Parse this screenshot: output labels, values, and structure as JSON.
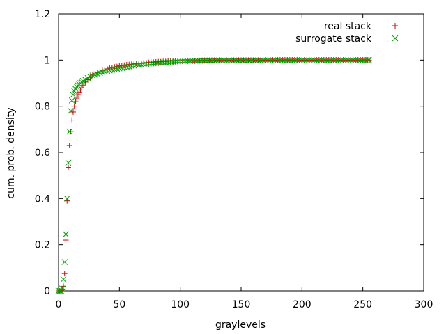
{
  "chart_data": {
    "type": "scatter",
    "xlabel": "graylevels",
    "ylabel": "cum. prob. density",
    "xlim": [
      0,
      300
    ],
    "ylim": [
      0,
      1.2
    ],
    "xticks": [
      "0",
      "50",
      "100",
      "150",
      "200",
      "250",
      "300"
    ],
    "yticks": [
      "0",
      "0.2",
      "0.4",
      "0.6",
      "0.8",
      "1",
      "1.2"
    ],
    "grid": false,
    "legend_position": "top-right",
    "series": [
      {
        "name": "real stack",
        "color": "#d00000",
        "marker": "plus",
        "x": [
          0,
          1,
          2,
          3,
          4,
          5,
          6,
          7,
          8,
          9,
          10,
          11,
          12,
          13,
          14,
          15,
          16,
          17,
          18,
          19,
          20,
          22,
          24,
          26,
          28,
          30,
          32,
          34,
          36,
          38,
          40,
          42,
          44,
          46,
          48,
          50,
          52,
          54,
          56,
          58,
          60,
          62,
          64,
          66,
          68,
          70,
          72,
          74,
          76,
          78,
          80,
          82,
          84,
          86,
          88,
          90,
          92,
          94,
          96,
          98,
          100,
          102,
          104,
          106,
          108,
          110,
          112,
          114,
          116,
          118,
          120,
          122,
          124,
          126,
          128,
          130,
          132,
          134,
          136,
          138,
          140,
          142,
          144,
          146,
          148,
          150,
          152,
          154,
          156,
          158,
          160,
          162,
          164,
          166,
          168,
          170,
          172,
          174,
          176,
          178,
          180,
          182,
          184,
          186,
          188,
          190,
          192,
          194,
          196,
          198,
          200,
          202,
          204,
          206,
          208,
          210,
          212,
          214,
          216,
          218,
          220,
          222,
          224,
          226,
          228,
          230,
          232,
          234,
          236,
          238,
          240,
          242,
          244,
          246,
          248,
          250,
          252,
          254,
          255
        ],
        "y": [
          0,
          0,
          0,
          0.005,
          0.02,
          0.075,
          0.22,
          0.39,
          0.535,
          0.63,
          0.69,
          0.74,
          0.775,
          0.8,
          0.82,
          0.835,
          0.85,
          0.86,
          0.87,
          0.88,
          0.89,
          0.905,
          0.915,
          0.925,
          0.935,
          0.94,
          0.945,
          0.95,
          0.955,
          0.958,
          0.962,
          0.965,
          0.968,
          0.97,
          0.972,
          0.975,
          0.977,
          0.978,
          0.98,
          0.981,
          0.982,
          0.984,
          0.985,
          0.986,
          0.987,
          0.988,
          0.989,
          0.99,
          0.991,
          0.991,
          0.992,
          0.993,
          0.993,
          0.994,
          0.994,
          0.995,
          0.995,
          0.996,
          0.996,
          0.996,
          0.997,
          0.997,
          0.997,
          0.998,
          0.998,
          0.998,
          0.998,
          0.998,
          0.998,
          0.999,
          0.999,
          0.999,
          0.999,
          0.999,
          0.999,
          0.999,
          0.999,
          0.999,
          0.999,
          0.999,
          0.999,
          0.999,
          0.999,
          0.999,
          0.999,
          0.999,
          0.999,
          0.999,
          0.999,
          0.999,
          0.999,
          0.999,
          0.999,
          0.999,
          0.999,
          1,
          1,
          1,
          1,
          1,
          1,
          1,
          1,
          1,
          1,
          1,
          1,
          1,
          1,
          1,
          1,
          1,
          1,
          1,
          1,
          1,
          1,
          1,
          1,
          1,
          1,
          1,
          1,
          1,
          1,
          1,
          1,
          1,
          1,
          1,
          1,
          1,
          1,
          1,
          1,
          1,
          1,
          1,
          1
        ]
      },
      {
        "name": "surrogate stack",
        "color": "#00a000",
        "marker": "cross",
        "x": [
          0,
          1,
          2,
          3,
          4,
          5,
          6,
          7,
          8,
          9,
          10,
          11,
          12,
          13,
          14,
          15,
          16,
          17,
          18,
          19,
          20,
          22,
          24,
          26,
          28,
          30,
          32,
          34,
          36,
          38,
          40,
          42,
          44,
          46,
          48,
          50,
          52,
          54,
          56,
          58,
          60,
          62,
          64,
          66,
          68,
          70,
          72,
          74,
          76,
          78,
          80,
          82,
          84,
          86,
          88,
          90,
          92,
          94,
          96,
          98,
          100,
          102,
          104,
          106,
          108,
          110,
          112,
          114,
          116,
          118,
          120,
          122,
          124,
          126,
          128,
          130,
          132,
          134,
          136,
          138,
          140,
          142,
          144,
          146,
          148,
          150,
          152,
          154,
          156,
          158,
          160,
          162,
          164,
          166,
          168,
          170,
          172,
          174,
          176,
          178,
          180,
          182,
          184,
          186,
          188,
          190,
          192,
          194,
          196,
          198,
          200,
          202,
          204,
          206,
          208,
          210,
          212,
          214,
          216,
          218,
          220,
          222,
          224,
          226,
          228,
          230,
          232,
          234,
          236,
          238,
          240,
          242,
          244,
          246,
          248,
          250,
          252,
          254,
          255
        ],
        "y": [
          0,
          0,
          0,
          0.01,
          0.05,
          0.125,
          0.245,
          0.4,
          0.555,
          0.69,
          0.78,
          0.825,
          0.85,
          0.865,
          0.875,
          0.885,
          0.89,
          0.895,
          0.9,
          0.905,
          0.91,
          0.915,
          0.922,
          0.928,
          0.933,
          0.937,
          0.94,
          0.944,
          0.947,
          0.95,
          0.953,
          0.955,
          0.958,
          0.96,
          0.962,
          0.964,
          0.966,
          0.968,
          0.97,
          0.972,
          0.974,
          0.976,
          0.978,
          0.979,
          0.98,
          0.982,
          0.983,
          0.984,
          0.985,
          0.986,
          0.987,
          0.988,
          0.989,
          0.99,
          0.99,
          0.991,
          0.992,
          0.993,
          0.993,
          0.994,
          0.994,
          0.995,
          0.995,
          0.996,
          0.996,
          0.996,
          0.997,
          0.997,
          0.997,
          0.998,
          0.998,
          0.998,
          0.998,
          0.998,
          0.999,
          0.999,
          0.999,
          0.999,
          0.999,
          0.999,
          0.999,
          0.999,
          0.999,
          0.999,
          0.999,
          0.999,
          0.999,
          0.999,
          0.999,
          0.999,
          0.999,
          0.999,
          0.999,
          0.999,
          0.999,
          1,
          1,
          1,
          1,
          1,
          1,
          1,
          1,
          1,
          1,
          1,
          1,
          1,
          1,
          1,
          1,
          1,
          1,
          1,
          1,
          1,
          1,
          1,
          1,
          1,
          1,
          1,
          1,
          1,
          1,
          1,
          1,
          1,
          1,
          1,
          1,
          1,
          1,
          1,
          1,
          1,
          1,
          1,
          1
        ]
      }
    ]
  }
}
